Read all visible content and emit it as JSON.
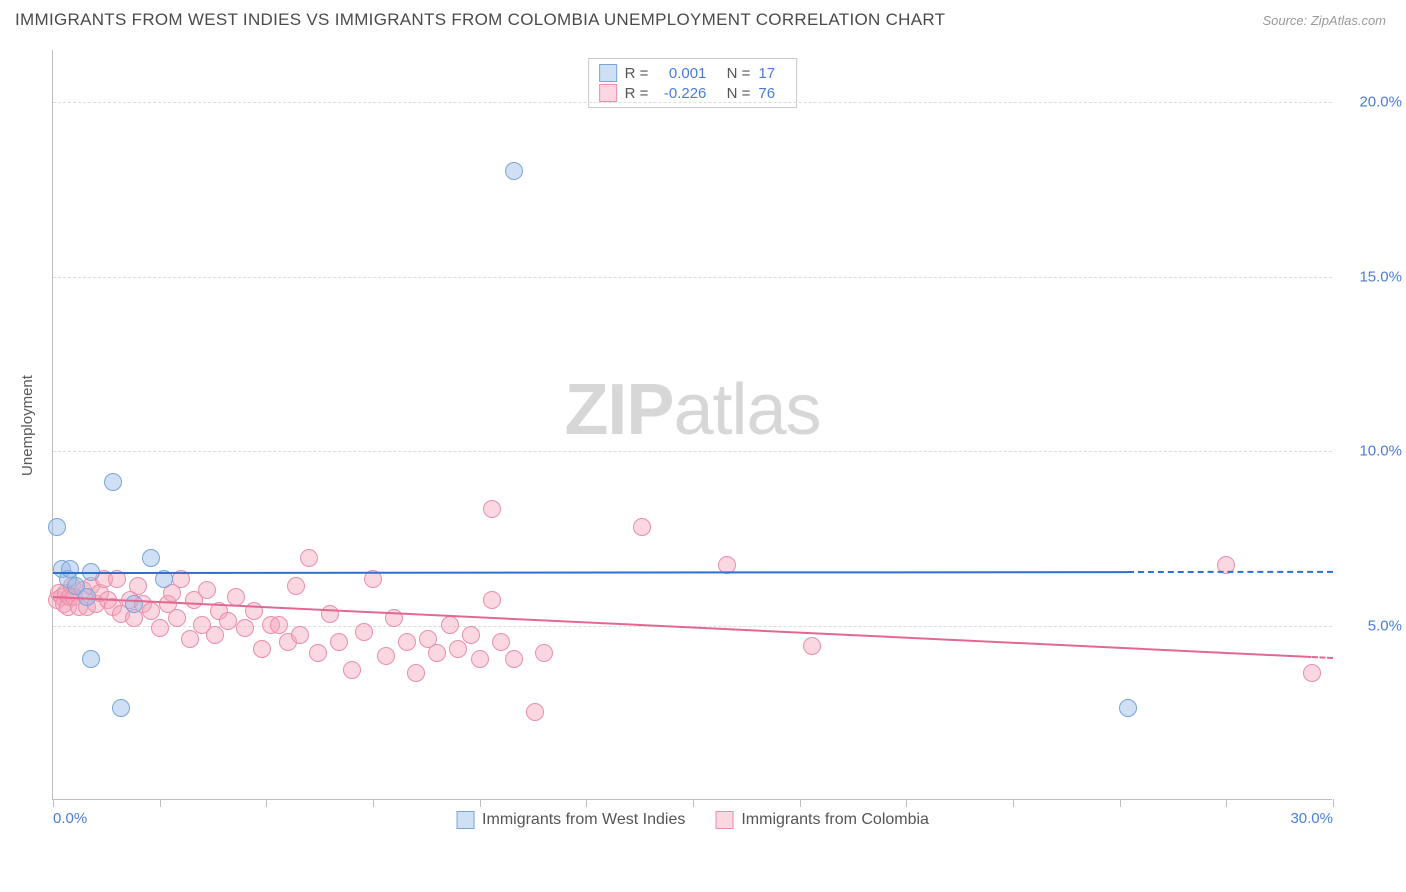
{
  "title": "IMMIGRANTS FROM WEST INDIES VS IMMIGRANTS FROM COLOMBIA UNEMPLOYMENT CORRELATION CHART",
  "source": "Source: ZipAtlas.com",
  "ylabel": "Unemployment",
  "watermark_bold": "ZIP",
  "watermark_light": "atlas",
  "chart": {
    "type": "scatter",
    "xlim": [
      0,
      30
    ],
    "ylim": [
      0,
      21.5
    ],
    "x_tick_positions": [
      0,
      2.5,
      5,
      7.5,
      10,
      12.5,
      15,
      17.5,
      20,
      22.5,
      25,
      27.5,
      30
    ],
    "x_tick_labels": {
      "0": "0.0%",
      "30": "30.0%"
    },
    "y_gridlines": [
      5,
      10,
      15,
      20
    ],
    "y_tick_labels": {
      "5": "5.0%",
      "10": "10.0%",
      "15": "15.0%",
      "20": "20.0%"
    },
    "background_color": "#ffffff",
    "grid_color": "#dcdcdc",
    "axis_color": "#bfbfbf",
    "tick_label_color": "#4a7dd8",
    "label_color": "#5a5a5a"
  },
  "series": {
    "west_indies": {
      "label": "Immigrants from West Indies",
      "fill": "rgba(148,184,230,0.45)",
      "stroke": "#7aa5d8",
      "marker_radius": 9,
      "r": "0.001",
      "n": "17",
      "trend": {
        "y_start": 6.55,
        "y_end": 6.58,
        "solid_until_x": 25.2,
        "color": "#2f6fd0"
      },
      "points": [
        [
          0.1,
          7.8
        ],
        [
          0.2,
          6.6
        ],
        [
          0.35,
          6.3
        ],
        [
          0.4,
          6.6
        ],
        [
          0.55,
          6.1
        ],
        [
          0.8,
          5.8
        ],
        [
          0.9,
          6.5
        ],
        [
          0.9,
          4.0
        ],
        [
          1.4,
          9.1
        ],
        [
          1.6,
          2.6
        ],
        [
          1.9,
          5.6
        ],
        [
          2.3,
          6.9
        ],
        [
          2.6,
          6.3
        ],
        [
          10.8,
          18.0
        ],
        [
          25.2,
          2.6
        ]
      ]
    },
    "colombia": {
      "label": "Immigrants from Colombia",
      "fill": "rgba(244,166,188,0.45)",
      "stroke": "#e98faa",
      "marker_radius": 9,
      "r": "-0.226",
      "n": "76",
      "trend": {
        "y_start": 5.85,
        "y_end": 4.1,
        "solid_until_x": 29.5,
        "color": "#e36891"
      },
      "points": [
        [
          0.1,
          5.7
        ],
        [
          0.15,
          5.9
        ],
        [
          0.2,
          5.8
        ],
        [
          0.25,
          5.6
        ],
        [
          0.3,
          5.9
        ],
        [
          0.35,
          5.5
        ],
        [
          0.4,
          5.8
        ],
        [
          0.45,
          6.1
        ],
        [
          0.5,
          5.8
        ],
        [
          0.6,
          5.5
        ],
        [
          0.7,
          6.0
        ],
        [
          0.8,
          5.5
        ],
        [
          0.9,
          6.1
        ],
        [
          1.0,
          5.6
        ],
        [
          1.1,
          5.9
        ],
        [
          1.2,
          6.3
        ],
        [
          1.3,
          5.7
        ],
        [
          1.4,
          5.5
        ],
        [
          1.5,
          6.3
        ],
        [
          1.6,
          5.3
        ],
        [
          1.8,
          5.7
        ],
        [
          1.9,
          5.2
        ],
        [
          2.0,
          6.1
        ],
        [
          2.1,
          5.6
        ],
        [
          2.3,
          5.4
        ],
        [
          2.5,
          4.9
        ],
        [
          2.7,
          5.6
        ],
        [
          2.8,
          5.9
        ],
        [
          2.9,
          5.2
        ],
        [
          3.0,
          6.3
        ],
        [
          3.2,
          4.6
        ],
        [
          3.3,
          5.7
        ],
        [
          3.5,
          5.0
        ],
        [
          3.6,
          6.0
        ],
        [
          3.8,
          4.7
        ],
        [
          3.9,
          5.4
        ],
        [
          4.1,
          5.1
        ],
        [
          4.3,
          5.8
        ],
        [
          4.5,
          4.9
        ],
        [
          4.7,
          5.4
        ],
        [
          4.9,
          4.3
        ],
        [
          5.1,
          5.0
        ],
        [
          5.3,
          5.0
        ],
        [
          5.5,
          4.5
        ],
        [
          5.7,
          6.1
        ],
        [
          5.8,
          4.7
        ],
        [
          6.0,
          6.9
        ],
        [
          6.2,
          4.2
        ],
        [
          6.5,
          5.3
        ],
        [
          6.7,
          4.5
        ],
        [
          7.0,
          3.7
        ],
        [
          7.3,
          4.8
        ],
        [
          7.5,
          6.3
        ],
        [
          7.8,
          4.1
        ],
        [
          8.0,
          5.2
        ],
        [
          8.3,
          4.5
        ],
        [
          8.5,
          3.6
        ],
        [
          8.8,
          4.6
        ],
        [
          9.0,
          4.2
        ],
        [
          9.3,
          5.0
        ],
        [
          9.5,
          4.3
        ],
        [
          9.8,
          4.7
        ],
        [
          10.0,
          4.0
        ],
        [
          10.3,
          5.7
        ],
        [
          10.3,
          8.3
        ],
        [
          10.5,
          4.5
        ],
        [
          10.8,
          4.0
        ],
        [
          11.3,
          2.5
        ],
        [
          11.5,
          4.2
        ],
        [
          13.8,
          7.8
        ],
        [
          15.8,
          6.7
        ],
        [
          17.8,
          4.4
        ],
        [
          27.5,
          6.7
        ],
        [
          29.5,
          3.6
        ]
      ]
    }
  },
  "legend": {
    "r_label": "R =",
    "n_label": "N ="
  }
}
